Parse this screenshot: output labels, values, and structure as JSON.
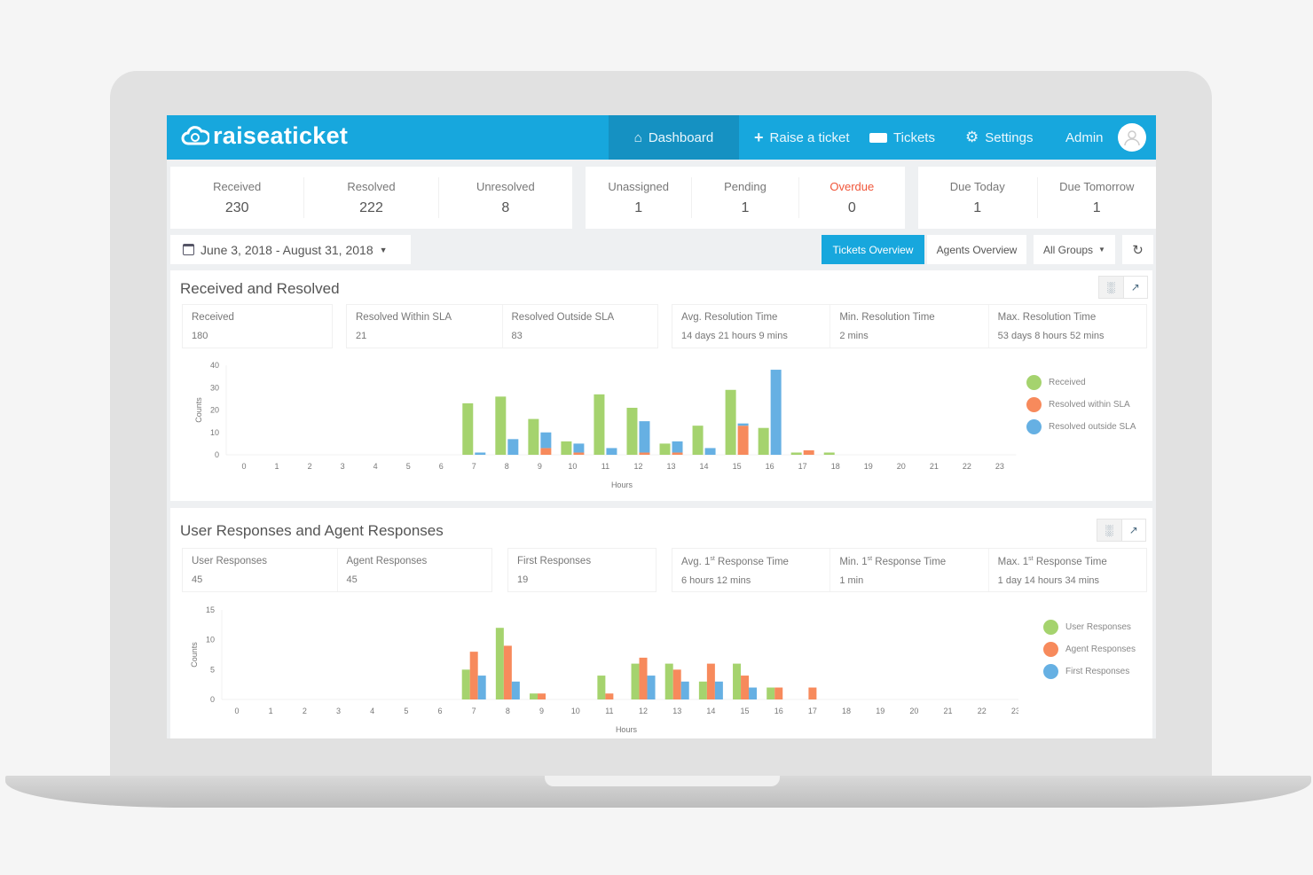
{
  "brand": {
    "name": "raiseaticket"
  },
  "nav": {
    "dashboard": "Dashboard",
    "raise": "Raise a ticket",
    "tickets": "Tickets",
    "settings": "Settings",
    "user": "Admin",
    "active": "Dashboard"
  },
  "stats": {
    "group1": [
      {
        "label": "Received",
        "value": "230"
      },
      {
        "label": "Resolved",
        "value": "222"
      },
      {
        "label": "Unresolved",
        "value": "8"
      }
    ],
    "group2": [
      {
        "label": "Unassigned",
        "value": "1"
      },
      {
        "label": "Pending",
        "value": "1"
      },
      {
        "label": "Overdue",
        "value": "0"
      }
    ],
    "group3": [
      {
        "label": "Due Today",
        "value": "1"
      },
      {
        "label": "Due Tomorrow",
        "value": "1"
      }
    ]
  },
  "filters": {
    "date_range": "June 3, 2018 - August 31, 2018",
    "tickets_overview": "Tickets Overview",
    "agents_overview": "Agents Overview",
    "groups": "All Groups"
  },
  "colors": {
    "brand": "#17a7dd",
    "green": "#a5d36e",
    "red": "#f78a5c",
    "blue": "#66b0e3",
    "overdue": "#f0563a"
  },
  "panel1": {
    "title": "Received and Resolved",
    "metrics": [
      {
        "label": "Received",
        "value": "180"
      },
      {
        "label": "Resolved Within SLA",
        "value": "21"
      },
      {
        "label": "Resolved Outside SLA",
        "value": "83"
      },
      {
        "label": "Avg. Resolution Time",
        "value": "14 days 21 hours 9 mins"
      },
      {
        "label": "Min. Resolution Time",
        "value": "2 mins"
      },
      {
        "label": "Max. Resolution Time",
        "value": "53 days 8 hours 52 mins"
      }
    ]
  },
  "panel2": {
    "title": "User Responses and Agent Responses",
    "metrics": [
      {
        "label": "User Responses",
        "value": "45"
      },
      {
        "label": "Agent Responses",
        "value": "45"
      },
      {
        "label": "First Responses",
        "value": "19"
      },
      {
        "pre": "Avg. 1",
        "sup": "st",
        "post": " Response Time",
        "value": "6 hours 12 mins"
      },
      {
        "pre": "Min. 1",
        "sup": "st",
        "post": " Response Time",
        "value": "1 min"
      },
      {
        "pre": "Max. 1",
        "sup": "st",
        "post": " Response Time",
        "value": "1 day 14 hours 34 mins"
      }
    ]
  },
  "chart_data": [
    {
      "type": "bar",
      "xlabel": "Hours",
      "ylabel": "Counts",
      "ylim": [
        0,
        40
      ],
      "yticks": [
        0,
        10,
        20,
        30,
        40
      ],
      "categories": [
        "0",
        "1",
        "2",
        "3",
        "4",
        "5",
        "6",
        "7",
        "8",
        "9",
        "10",
        "11",
        "12",
        "13",
        "14",
        "15",
        "16",
        "17",
        "18",
        "19",
        "20",
        "21",
        "22",
        "23"
      ],
      "legend": "right",
      "series": [
        {
          "name": "Received",
          "color": "#a5d36e",
          "values": [
            0,
            0,
            0,
            0,
            0,
            0,
            0,
            23,
            26,
            16,
            6,
            27,
            21,
            5,
            13,
            29,
            12,
            1,
            1,
            0,
            0,
            0,
            0,
            0
          ]
        },
        {
          "name": "Resolved within SLA",
          "color": "#f78a5c",
          "stack": "resolved",
          "values": [
            0,
            0,
            0,
            0,
            0,
            0,
            0,
            0,
            0,
            3,
            1,
            0,
            1,
            1,
            0,
            13,
            0,
            2,
            0,
            0,
            0,
            0,
            0,
            0
          ]
        },
        {
          "name": "Resolved outside SLA",
          "color": "#66b0e3",
          "stack": "resolved",
          "values": [
            0,
            0,
            0,
            0,
            0,
            0,
            0,
            1,
            7,
            7,
            4,
            3,
            14,
            5,
            3,
            1,
            38,
            0,
            0,
            0,
            0,
            0,
            0,
            0
          ]
        }
      ]
    },
    {
      "type": "bar",
      "xlabel": "Hours",
      "ylabel": "Counts",
      "ylim": [
        0,
        15
      ],
      "yticks": [
        0,
        5,
        10,
        15
      ],
      "categories": [
        "0",
        "1",
        "2",
        "3",
        "4",
        "5",
        "6",
        "7",
        "8",
        "9",
        "10",
        "11",
        "12",
        "13",
        "14",
        "15",
        "16",
        "17",
        "18",
        "19",
        "20",
        "21",
        "22",
        "23"
      ],
      "legend": "right",
      "series": [
        {
          "name": "User Responses",
          "color": "#a5d36e",
          "values": [
            0,
            0,
            0,
            0,
            0,
            0,
            0,
            5,
            12,
            1,
            0,
            4,
            6,
            6,
            3,
            6,
            2,
            0,
            0,
            0,
            0,
            0,
            0,
            0
          ]
        },
        {
          "name": "Agent Responses",
          "color": "#f78a5c",
          "values": [
            0,
            0,
            0,
            0,
            0,
            0,
            0,
            8,
            9,
            1,
            0,
            1,
            7,
            5,
            6,
            4,
            2,
            2,
            0,
            0,
            0,
            0,
            0,
            0
          ]
        },
        {
          "name": "First Responses",
          "color": "#66b0e3",
          "values": [
            0,
            0,
            0,
            0,
            0,
            0,
            0,
            4,
            3,
            0,
            0,
            0,
            4,
            3,
            3,
            2,
            0,
            0,
            0,
            0,
            0,
            0,
            0,
            0
          ]
        }
      ]
    }
  ]
}
